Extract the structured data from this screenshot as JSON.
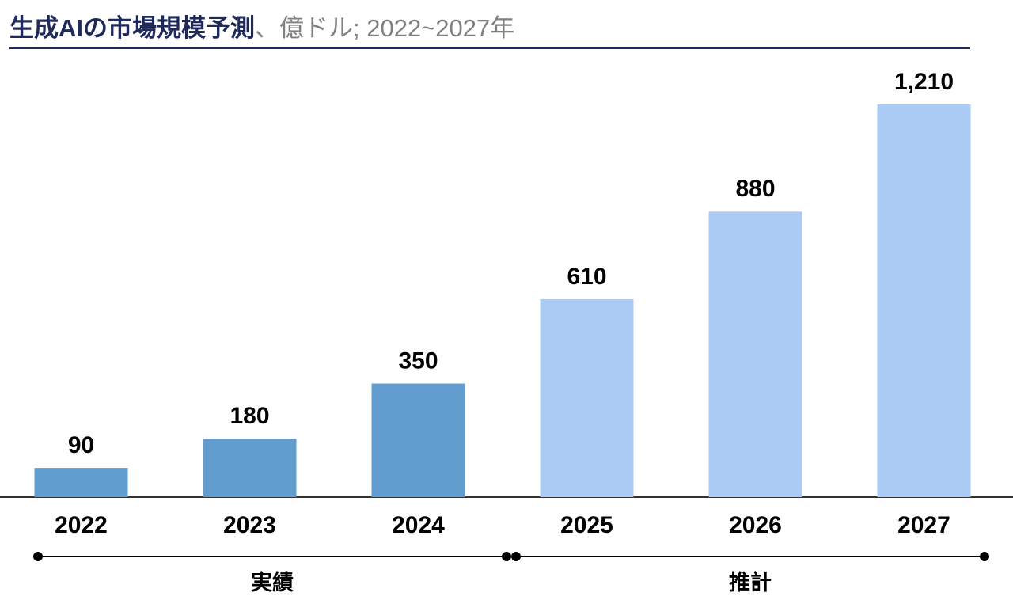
{
  "chart_data": {
    "type": "bar",
    "title": "生成AIの市場規模予測",
    "subtitle": "、億ドル; 2022~2027年",
    "categories": [
      "2022",
      "2023",
      "2024",
      "2025",
      "2026",
      "2027"
    ],
    "values": [
      90,
      180,
      350,
      610,
      880,
      1210
    ],
    "value_labels": [
      "90",
      "180",
      "350",
      "610",
      "880",
      "1,210"
    ],
    "colors": [
      "#619ecf",
      "#619ecf",
      "#619ecf",
      "#abcbf5",
      "#abcbf5",
      "#abcbf5"
    ],
    "period_labels": [
      "実績",
      "推計"
    ]
  }
}
